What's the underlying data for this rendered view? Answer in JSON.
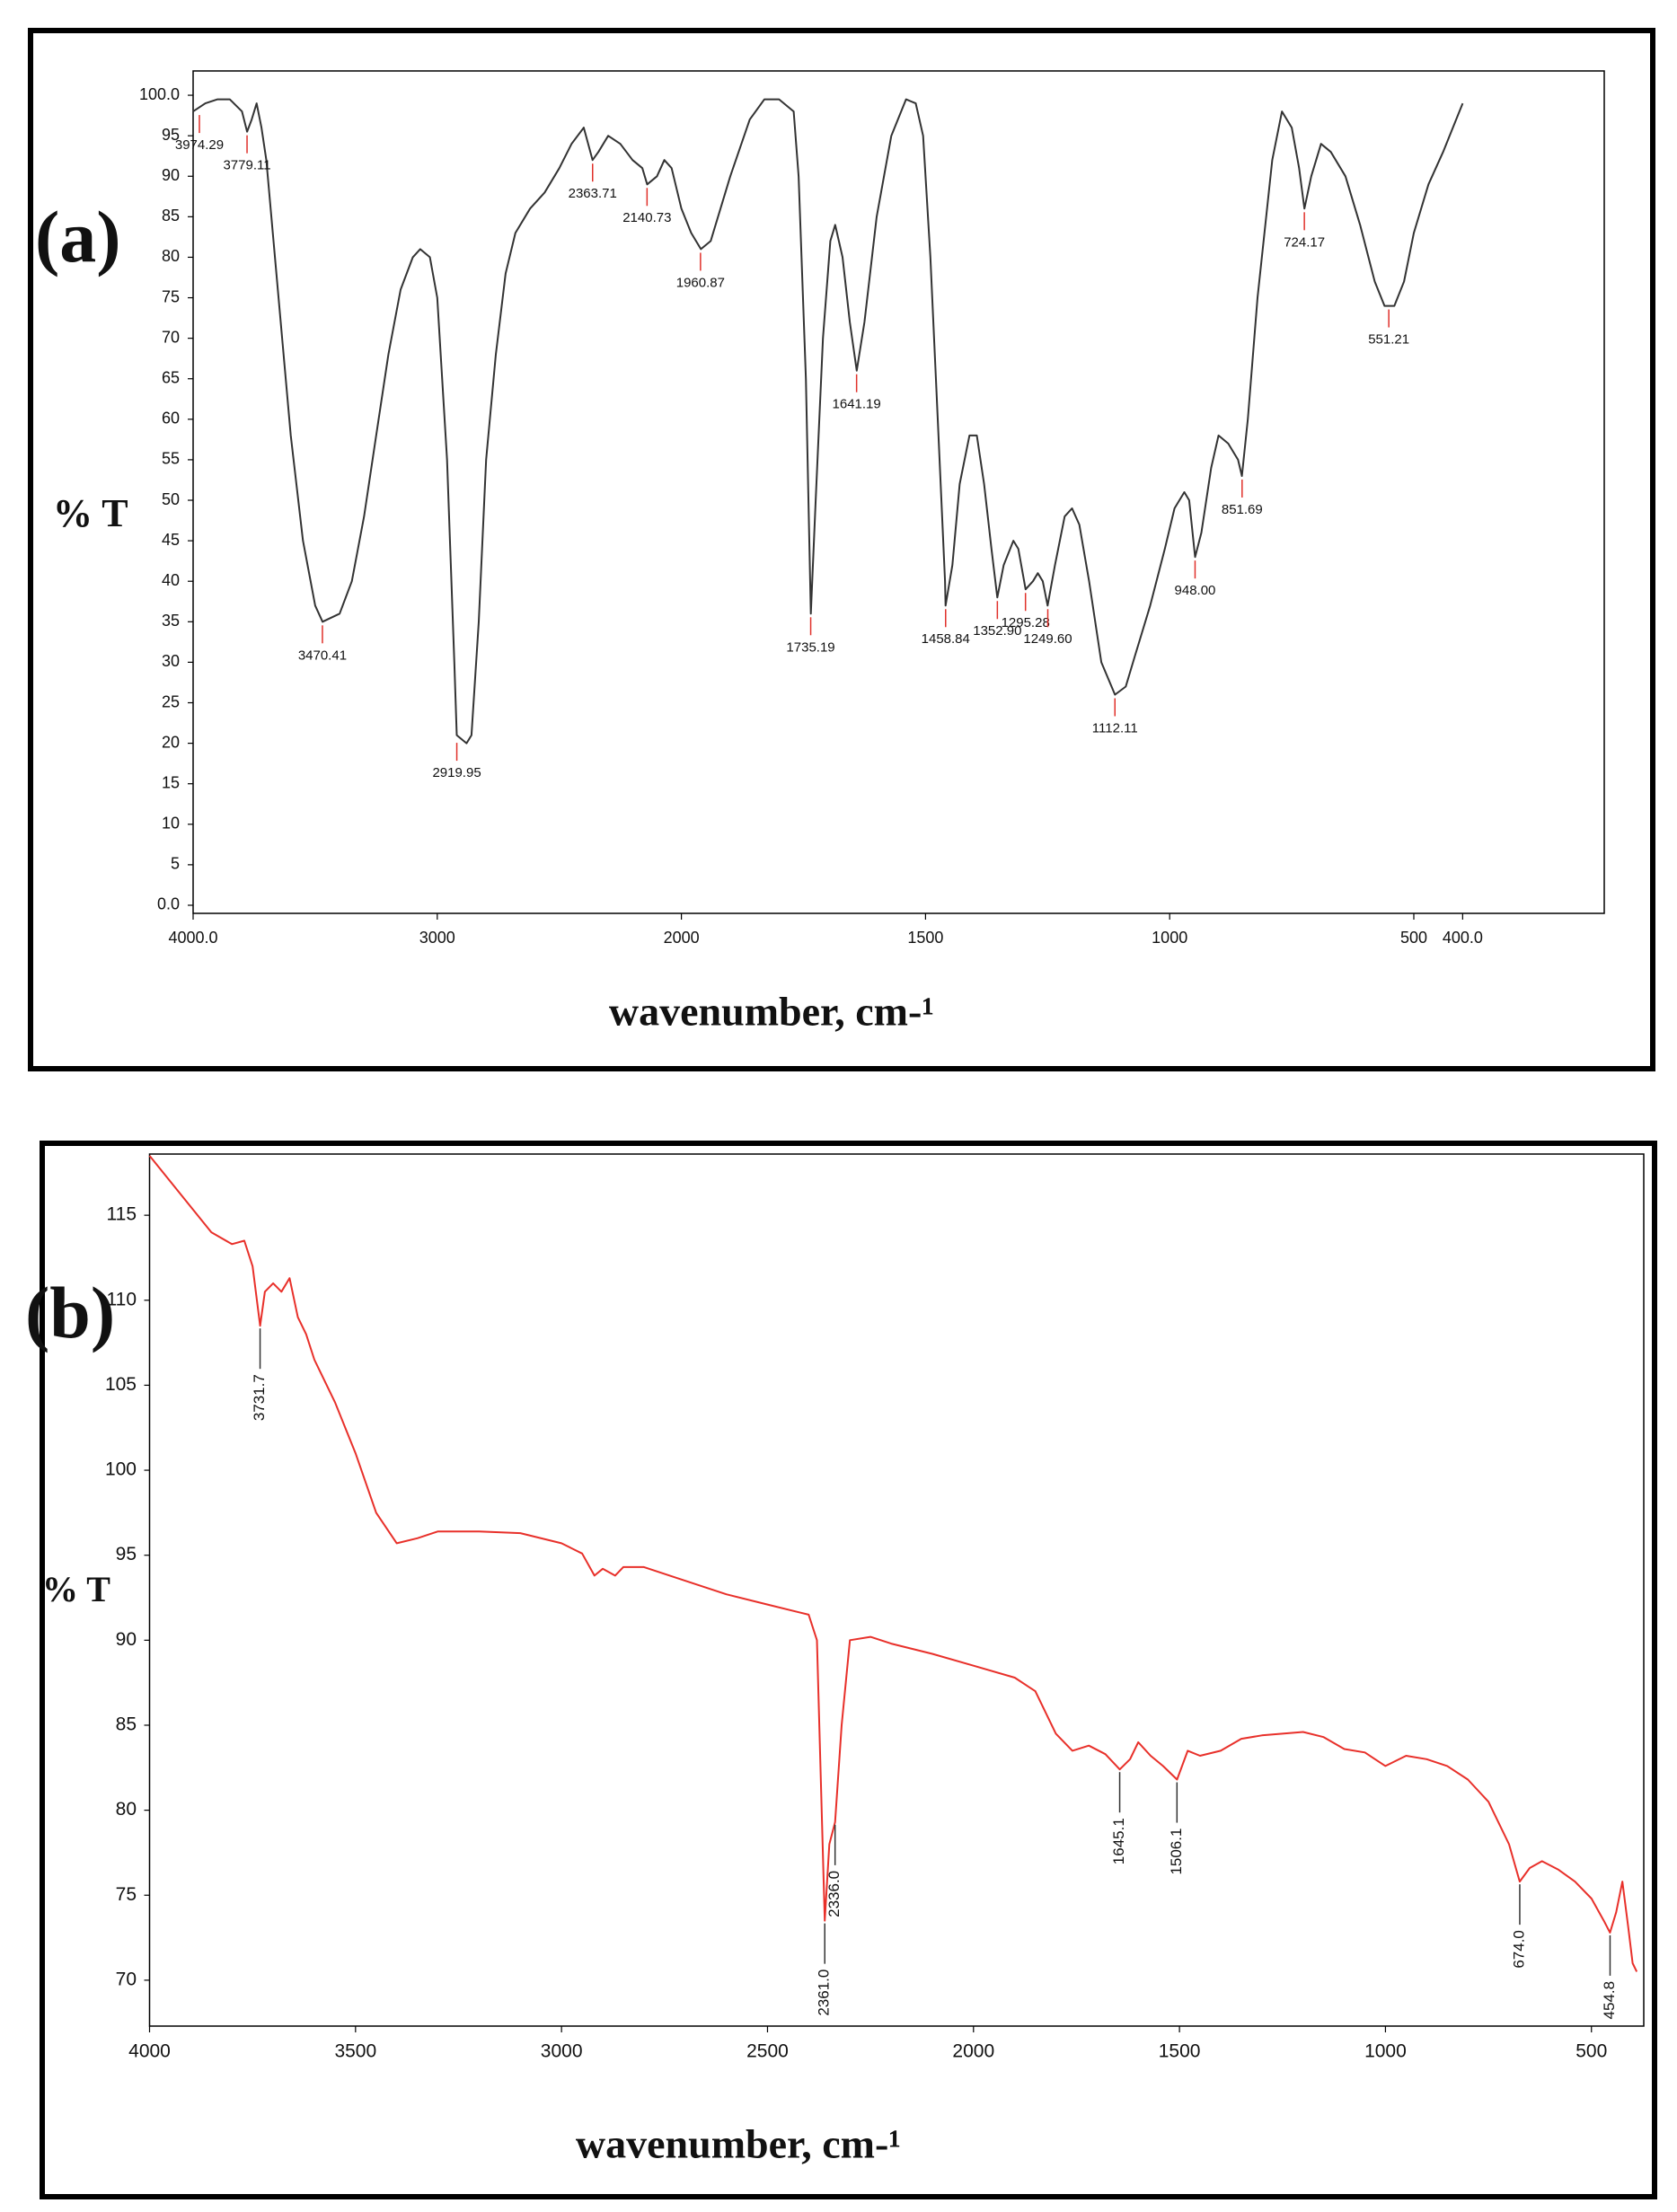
{
  "chart_data": [
    {
      "type": "line",
      "panel_label": "(a)",
      "ylabel": "% T",
      "xlabel": "wavenumber, cm-¹",
      "xlim": [
        4000,
        110
      ],
      "xbreak": 2000,
      "xbreak_stretch": 2,
      "xticks": [
        {
          "value": 4000,
          "label": "4000.0"
        },
        3000,
        2000,
        1500,
        1000,
        500,
        {
          "value": 400,
          "label": "400.0"
        }
      ],
      "ylim": [
        -1,
        103
      ],
      "yticks": [
        {
          "value": 0,
          "label": "0.0"
        },
        5,
        10,
        15,
        20,
        25,
        30,
        35,
        40,
        45,
        50,
        55,
        60,
        65,
        70,
        75,
        80,
        85,
        90,
        95,
        {
          "value": 100,
          "label": "100.0"
        }
      ],
      "grid": false,
      "peak_color": "#e0302a",
      "series": [
        {
          "color": "#333333",
          "x": [
            4000,
            3950,
            3900,
            3850,
            3800,
            3779,
            3760,
            3740,
            3720,
            3700,
            3650,
            3600,
            3550,
            3500,
            3470,
            3400,
            3350,
            3300,
            3250,
            3200,
            3150,
            3100,
            3070,
            3030,
            3000,
            2960,
            2930,
            2920,
            2880,
            2860,
            2830,
            2800,
            2760,
            2720,
            2680,
            2620,
            2560,
            2500,
            2450,
            2400,
            2364,
            2340,
            2300,
            2250,
            2200,
            2160,
            2140,
            2100,
            2070,
            2040,
            2000,
            1980,
            1960,
            1940,
            1900,
            1860,
            1830,
            1800,
            1770,
            1760,
            1745,
            1735,
            1725,
            1710,
            1695,
            1685,
            1670,
            1655,
            1641,
            1625,
            1600,
            1570,
            1540,
            1520,
            1505,
            1490,
            1475,
            1460,
            1459,
            1445,
            1430,
            1410,
            1395,
            1380,
            1365,
            1353,
            1340,
            1320,
            1310,
            1295,
            1280,
            1270,
            1260,
            1250,
            1235,
            1215,
            1200,
            1185,
            1165,
            1140,
            1112,
            1090,
            1070,
            1040,
            1010,
            990,
            970,
            960,
            948,
            935,
            915,
            900,
            880,
            860,
            852,
            840,
            820,
            790,
            770,
            750,
            735,
            724,
            710,
            690,
            670,
            640,
            610,
            580,
            560,
            540,
            520,
            500,
            470,
            440,
            420,
            400
          ],
          "values": [
            98,
            99,
            99.5,
            99.5,
            98,
            95.5,
            97,
            99,
            96,
            92,
            75,
            58,
            45,
            37,
            35,
            36,
            40,
            48,
            58,
            68,
            76,
            80,
            81,
            80,
            75,
            55,
            30,
            21,
            20,
            21,
            35,
            55,
            68,
            78,
            83,
            86,
            88,
            91,
            94,
            96,
            92,
            93,
            95,
            94,
            92,
            91,
            89,
            90,
            92,
            91,
            86,
            83,
            81,
            82,
            90,
            97,
            99.5,
            99.5,
            98,
            90,
            65,
            36,
            50,
            70,
            82,
            84,
            80,
            72,
            66,
            72,
            85,
            95,
            99.5,
            99,
            95,
            80,
            60,
            40,
            37,
            42,
            52,
            58,
            58,
            52,
            44,
            38,
            42,
            45,
            44,
            39,
            40,
            41,
            40,
            37,
            42,
            48,
            49,
            47,
            40,
            30,
            26,
            27,
            31,
            37,
            44,
            49,
            51,
            50,
            43,
            46,
            54,
            58,
            57,
            55,
            53,
            60,
            75,
            92,
            98,
            96,
            91,
            86,
            90,
            94,
            93,
            90,
            84,
            77,
            74,
            74,
            77,
            83,
            89,
            93,
            96,
            99
          ]
        }
      ],
      "peaks": {
        "x": [
          3974.29,
          3779.11,
          3470.41,
          2919.95,
          2363.71,
          2140.73,
          1960.87,
          1735.19,
          1641.19,
          1458.84,
          1352.9,
          1295.28,
          1249.6,
          1112.11,
          948.0,
          851.69,
          724.17,
          551.21
        ],
        "values": [
          98,
          95.5,
          35,
          20.5,
          92,
          89,
          81,
          36,
          66,
          37,
          38,
          39,
          37,
          26,
          43,
          53,
          86,
          74
        ],
        "peak_labels": [
          "3974.29",
          "3779.11",
          "3470.41",
          "2919.95",
          "2363.71",
          "2140.73",
          "1960.87",
          "1735.19",
          "1641.19",
          "1458.84",
          "1352.90",
          "1295.28",
          "1249.60",
          "1112.11",
          "948.00",
          "851.69",
          "724.17",
          "551.21"
        ]
      }
    },
    {
      "type": "line",
      "panel_label": "(b)",
      "ylabel": "% T",
      "xlabel": "wavenumber, cm-¹",
      "xlim": [
        4000,
        373
      ],
      "xticks": [
        4000,
        3500,
        3000,
        2500,
        2000,
        1500,
        1000,
        500
      ],
      "ylim": [
        67.3,
        118.6
      ],
      "yticks": [
        70,
        75,
        80,
        85,
        90,
        95,
        100,
        105,
        110,
        115
      ],
      "grid": false,
      "peak_color": "#333333",
      "series": [
        {
          "color": "#e8302a",
          "x": [
            4000,
            3950,
            3900,
            3850,
            3800,
            3770,
            3750,
            3731.7,
            3720,
            3700,
            3680,
            3660,
            3640,
            3620,
            3600,
            3550,
            3500,
            3450,
            3400,
            3350,
            3300,
            3200,
            3100,
            3000,
            2950,
            2920,
            2900,
            2870,
            2850,
            2800,
            2700,
            2600,
            2500,
            2400,
            2380,
            2361,
            2350,
            2336,
            2320,
            2300,
            2250,
            2200,
            2100,
            2000,
            1900,
            1850,
            1800,
            1760,
            1720,
            1680,
            1645,
            1620,
            1600,
            1570,
            1540,
            1506,
            1480,
            1450,
            1400,
            1350,
            1300,
            1200,
            1150,
            1100,
            1050,
            1000,
            950,
            900,
            850,
            800,
            750,
            700,
            674,
            650,
            620,
            580,
            540,
            500,
            470,
            455,
            440,
            425,
            410,
            400,
            390
          ],
          "values": [
            118.5,
            117,
            115.5,
            114,
            113.3,
            113.5,
            112,
            108.5,
            110.5,
            111,
            110.5,
            111.3,
            109,
            108,
            106.5,
            104,
            101,
            97.5,
            95.7,
            96,
            96.4,
            96.4,
            96.3,
            95.7,
            95.1,
            93.8,
            94.2,
            93.8,
            94.3,
            94.3,
            93.5,
            92.7,
            92.1,
            91.5,
            90,
            73.5,
            78,
            79.3,
            85,
            90,
            90.2,
            89.8,
            89.2,
            88.5,
            87.8,
            87,
            84.5,
            83.5,
            83.8,
            83.3,
            82.4,
            83,
            84,
            83.2,
            82.6,
            81.8,
            83.5,
            83.2,
            83.5,
            84.2,
            84.4,
            84.6,
            84.3,
            83.6,
            83.4,
            82.6,
            83.2,
            83,
            82.6,
            81.8,
            80.5,
            78,
            75.8,
            76.6,
            77,
            76.5,
            75.8,
            74.8,
            73.5,
            72.8,
            74,
            75.8,
            73,
            71,
            70.5
          ]
        }
      ],
      "peaks": {
        "x": [
          3731.7,
          2361.0,
          2336.0,
          1645.1,
          1506.1,
          674.0,
          454.8
        ],
        "values": [
          108.5,
          73.5,
          79.3,
          82.4,
          81.8,
          75.8,
          72.8
        ],
        "peak_labels": [
          "3731.7",
          "2361.0",
          "2336.0",
          "1645.1",
          "1506.1",
          "674.0",
          "454.8"
        ]
      }
    }
  ]
}
